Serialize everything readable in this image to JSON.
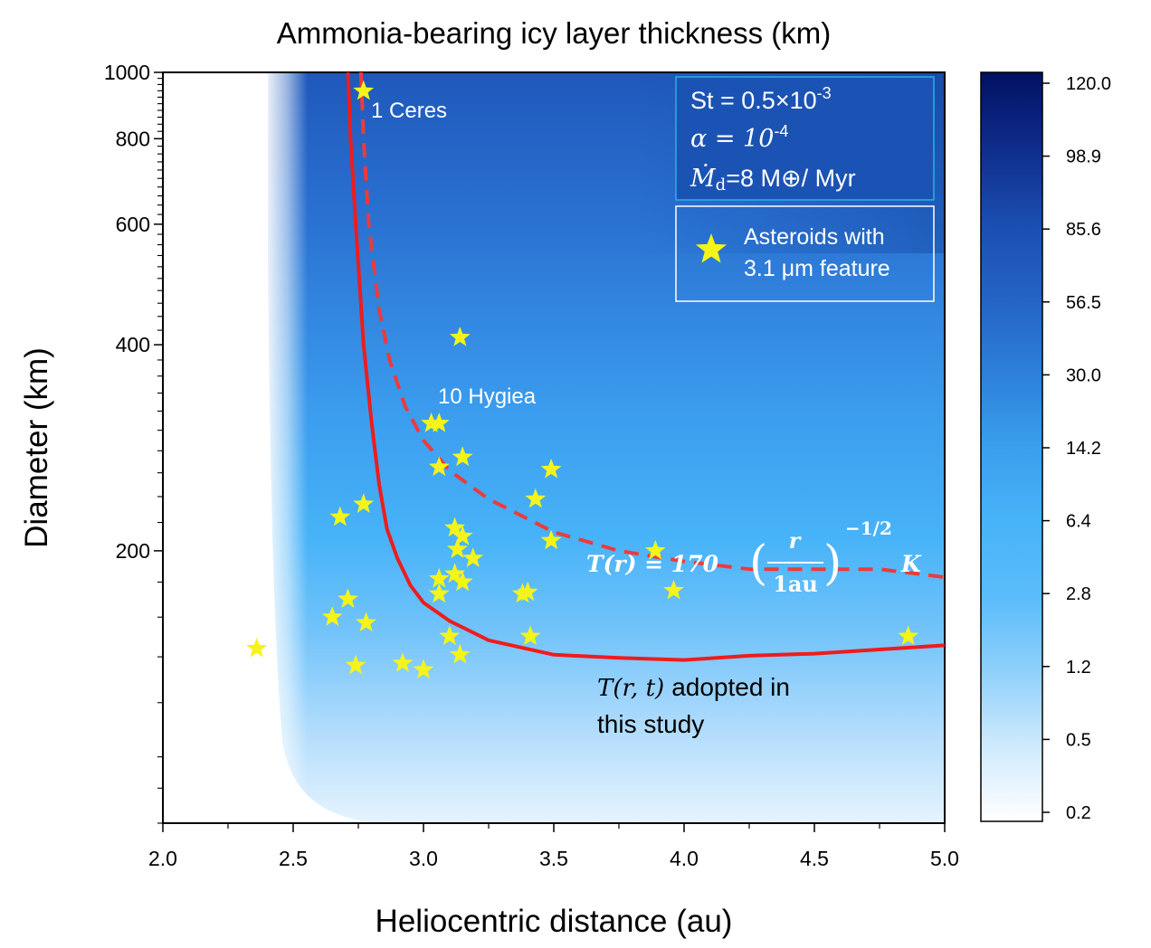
{
  "chart_data": {
    "type": "heatmap",
    "title": "Ammonia-bearing icy layer thickness (km)",
    "xlabel": "Heliocentric distance (au)",
    "ylabel": "Diameter (km)",
    "xlim": [
      2.0,
      5.0
    ],
    "ylim": [
      80,
      1000
    ],
    "y_scale": "log",
    "x_ticks": [
      "2.0",
      "2.5",
      "3.0",
      "3.5",
      "4.0",
      "4.5",
      "5.0"
    ],
    "y_ticks": [
      "200",
      "400",
      "600",
      "800",
      "1000"
    ],
    "colorbar": {
      "ticks": [
        "120.0",
        "98.9",
        "85.6",
        "56.5",
        "30.0",
        "14.2",
        "6.4",
        "2.8",
        "1.2",
        "0.5",
        "0.2"
      ],
      "colors": [
        "#ffffff",
        "#cfeafd",
        "#8fd0fb",
        "#5bbcfa",
        "#47b3f8",
        "#3a9fed",
        "#2d7fd8",
        "#2463c3",
        "#1b4db0",
        "#0e2d8a",
        "#021063"
      ]
    },
    "parameters": {
      "st_label": "St = 0.5×10",
      "st_exp": "-3",
      "alpha_label": "α = 10",
      "alpha_exp": "-4",
      "mdot_label": "Ṁ",
      "mdot_sub": "d",
      "mdot_value": "=8 M⊕/ Myr"
    },
    "legend": {
      "entries": [
        "Asteroids with",
        "3.1 μm feature"
      ],
      "placement": "top-right"
    },
    "annotations": {
      "ceres": "1 Ceres",
      "hygiea": "10 Hygiea",
      "formula_lhs": "T(r) = 170",
      "formula_num": "r",
      "formula_den": "1au",
      "formula_exp": "−1/2",
      "formula_unit": "K",
      "adopted_1": "adopted in",
      "adopted_2": "this study",
      "adopted_math": "T(r, t)"
    },
    "series": [
      {
        "type": "line",
        "style": "solid",
        "color": "#ee1c1c",
        "points": [
          [
            2.71,
            1000
          ],
          [
            2.72,
            800
          ],
          [
            2.74,
            600
          ],
          [
            2.77,
            400
          ],
          [
            2.8,
            310
          ],
          [
            2.83,
            250
          ],
          [
            2.86,
            215
          ],
          [
            2.9,
            195
          ],
          [
            2.95,
            178
          ],
          [
            3.0,
            168
          ],
          [
            3.1,
            158
          ],
          [
            3.25,
            148
          ],
          [
            3.5,
            141
          ],
          [
            3.75,
            139.5
          ],
          [
            4.0,
            138.5
          ],
          [
            4.25,
            140.5
          ],
          [
            4.5,
            141.5
          ],
          [
            4.75,
            143.5
          ],
          [
            5.0,
            145.5
          ]
        ]
      },
      {
        "type": "line",
        "style": "dashed",
        "color": "#ee3a3a",
        "points": [
          [
            2.76,
            1000
          ],
          [
            2.77,
            800
          ],
          [
            2.79,
            600
          ],
          [
            2.83,
            450
          ],
          [
            2.87,
            380
          ],
          [
            2.93,
            325
          ],
          [
            3.0,
            290
          ],
          [
            3.1,
            262
          ],
          [
            3.25,
            238
          ],
          [
            3.5,
            213
          ],
          [
            3.75,
            200
          ],
          [
            4.0,
            193
          ],
          [
            4.25,
            188
          ],
          [
            4.5,
            188
          ],
          [
            4.75,
            188
          ],
          [
            5.0,
            183
          ]
        ]
      },
      {
        "type": "scatter",
        "name": "Asteroids with 3.1 μm feature",
        "marker": "star",
        "color": "#f4f418",
        "points": [
          [
            2.77,
            939
          ],
          [
            3.14,
            410
          ],
          [
            3.03,
            307
          ],
          [
            3.06,
            307
          ],
          [
            3.15,
            274
          ],
          [
            3.06,
            265
          ],
          [
            3.49,
            263
          ],
          [
            2.77,
            234
          ],
          [
            3.43,
            238
          ],
          [
            2.68,
            224
          ],
          [
            3.12,
            216
          ],
          [
            3.15,
            210
          ],
          [
            3.49,
            207
          ],
          [
            3.13,
            201
          ],
          [
            3.19,
            195
          ],
          [
            3.89,
            200
          ],
          [
            3.12,
            185
          ],
          [
            3.06,
            182
          ],
          [
            3.15,
            180
          ],
          [
            2.71,
            170
          ],
          [
            3.06,
            173
          ],
          [
            3.38,
            173
          ],
          [
            3.4,
            174
          ],
          [
            3.96,
            175
          ],
          [
            2.65,
            160
          ],
          [
            2.78,
            157
          ],
          [
            3.1,
            150
          ],
          [
            3.41,
            150
          ],
          [
            4.86,
            150
          ],
          [
            2.36,
            144
          ],
          [
            3.14,
            141
          ],
          [
            2.74,
            136
          ],
          [
            2.92,
            137
          ],
          [
            3.0,
            134
          ]
        ]
      }
    ]
  }
}
